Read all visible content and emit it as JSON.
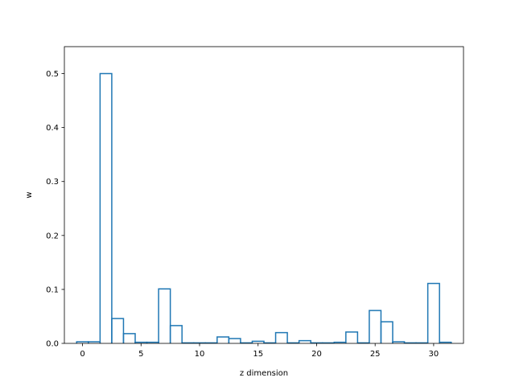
{
  "chart_data": {
    "type": "bar",
    "style": "step-histogram",
    "xlabel": "z dimension",
    "ylabel": "w",
    "xlim": [
      -1.55,
      32.55
    ],
    "ylim": [
      0,
      0.55
    ],
    "x_ticks": [
      0,
      5,
      10,
      15,
      20,
      25,
      30
    ],
    "y_ticks": [
      0.0,
      0.1,
      0.2,
      0.3,
      0.4,
      0.5
    ],
    "bin_width": 1,
    "x": [
      0,
      1,
      2,
      3,
      4,
      5,
      6,
      7,
      8,
      9,
      10,
      11,
      12,
      13,
      14,
      15,
      16,
      17,
      18,
      19,
      20,
      21,
      22,
      23,
      24,
      25,
      26,
      27,
      28,
      29,
      30,
      31
    ],
    "values": [
      0.003,
      0.003,
      0.5,
      0.046,
      0.018,
      0.002,
      0.002,
      0.101,
      0.033,
      0.001,
      0.001,
      0.001,
      0.012,
      0.009,
      0.001,
      0.004,
      0.001,
      0.02,
      0.001,
      0.005,
      0.001,
      0.001,
      0.002,
      0.021,
      0.001,
      0.061,
      0.04,
      0.003,
      0.001,
      0.001,
      0.111,
      0.002
    ],
    "grid": false,
    "legend": "none",
    "color": "#1f77b4"
  }
}
